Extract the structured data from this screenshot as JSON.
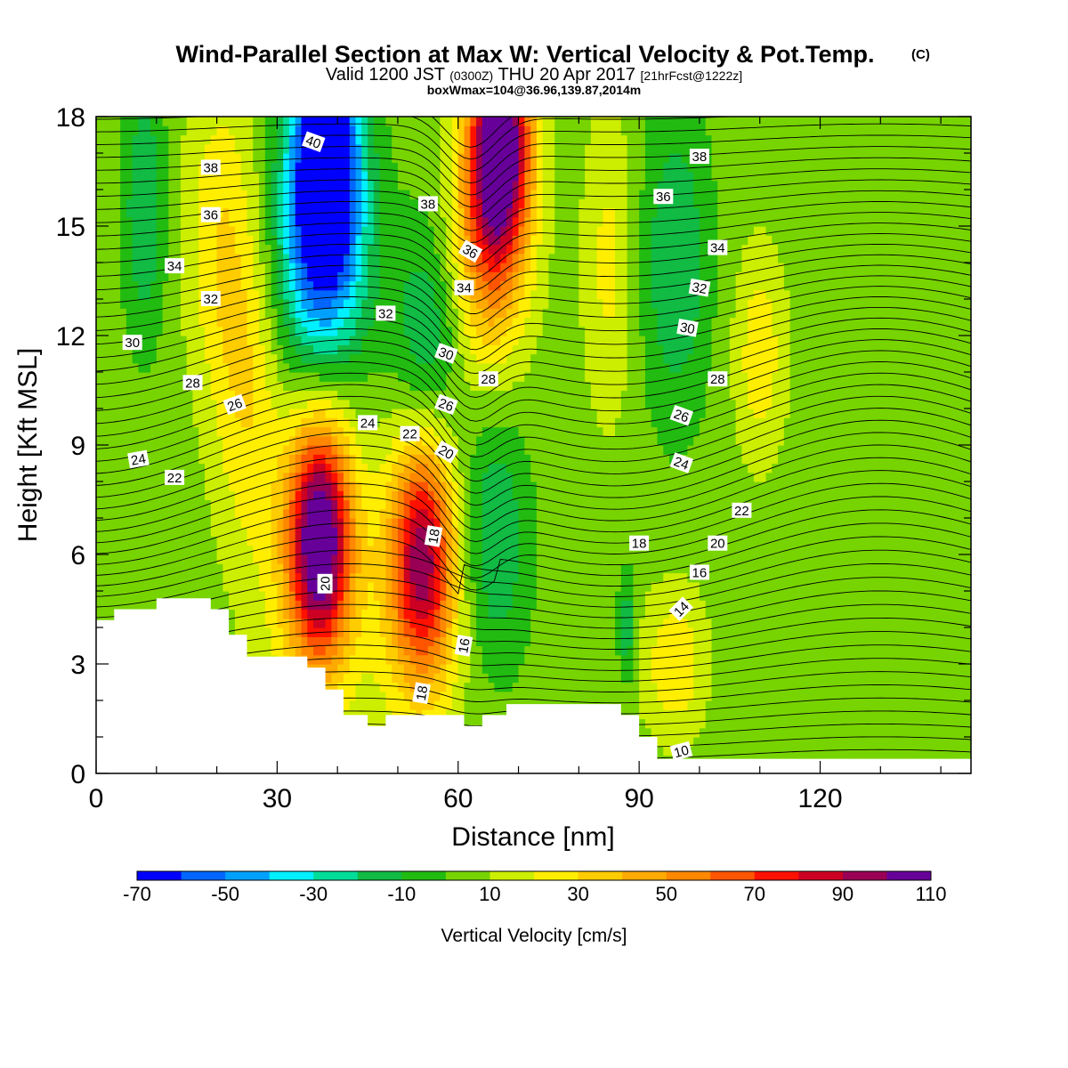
{
  "title": {
    "line1": "Wind-Parallel Section at Max W: Vertical Velocity & Pot.Temp.",
    "line1_suffix": "(C)",
    "line2_a": "Valid 1200 JST",
    "line2_b": "(0300Z)",
    "line2_c": "THU 20 Apr 2017",
    "line2_d": "[21hrFcst@1222z]",
    "line3": "boxWmax=104@36.96,139.87,2014m"
  },
  "chart_data": {
    "type": "heatmap",
    "xlabel": "Distance [nm]",
    "ylabel": "Height [Kft MSL]",
    "xlim": [
      0,
      145
    ],
    "ylim": [
      0,
      18
    ],
    "xticks": [
      0,
      30,
      60,
      90,
      120
    ],
    "yticks": [
      0,
      3,
      6,
      9,
      12,
      15,
      18
    ],
    "colorbar": {
      "title": "Vertical Velocity [cm/s]",
      "bounds": [
        -70,
        -60,
        -50,
        -40,
        -30,
        -20,
        -10,
        0,
        10,
        20,
        30,
        40,
        50,
        60,
        70,
        80,
        90,
        100,
        110
      ],
      "tick_labels": [
        -70,
        -50,
        -30,
        -10,
        10,
        30,
        50,
        70,
        90,
        110
      ],
      "colors": [
        "#0000ff",
        "#0066ff",
        "#00a0ff",
        "#00f0ff",
        "#00dd99",
        "#11bb44",
        "#22bb11",
        "#77d400",
        "#ccee00",
        "#ffee00",
        "#ffcc00",
        "#ffaa00",
        "#ff8800",
        "#ff5500",
        "#ff1100",
        "#cc0022",
        "#990055",
        "#660099"
      ]
    },
    "velocity_features": [
      {
        "x": 38,
        "y": 17,
        "sx": 4,
        "sy": 2.6,
        "value": -90
      },
      {
        "x": 37,
        "y": 14,
        "sx": 6,
        "sy": 2.5,
        "value": -40
      },
      {
        "x": 55,
        "y": 12,
        "sx": 4,
        "sy": 2.2,
        "value": -25
      },
      {
        "x": 67,
        "y": 17.5,
        "sx": 3.5,
        "sy": 2.2,
        "value": 110
      },
      {
        "x": 65,
        "y": 14.5,
        "sx": 4.5,
        "sy": 2.5,
        "value": 45
      },
      {
        "x": 37,
        "y": 6.5,
        "sx": 3.5,
        "sy": 2.2,
        "value": 90
      },
      {
        "x": 37,
        "y": 5.5,
        "sx": 6,
        "sy": 3,
        "value": 30
      },
      {
        "x": 54,
        "y": 6,
        "sx": 3.5,
        "sy": 2.2,
        "value": 65
      },
      {
        "x": 54,
        "y": 5,
        "sx": 5,
        "sy": 3,
        "value": 30
      },
      {
        "x": 25,
        "y": 11,
        "sx": 4,
        "sy": 3.5,
        "value": 25
      },
      {
        "x": 20,
        "y": 15,
        "sx": 4,
        "sy": 3,
        "value": 20
      },
      {
        "x": 66,
        "y": 6.5,
        "sx": 4,
        "sy": 2.5,
        "value": -25
      },
      {
        "x": 96,
        "y": 14,
        "sx": 4,
        "sy": 3,
        "value": -25
      },
      {
        "x": 85,
        "y": 14,
        "sx": 3,
        "sy": 3,
        "value": 18
      },
      {
        "x": 110,
        "y": 11.5,
        "sx": 3,
        "sy": 2,
        "value": 22
      },
      {
        "x": 8,
        "y": 15.5,
        "sx": 2.5,
        "sy": 2.5,
        "value": -25
      },
      {
        "x": 96,
        "y": 3,
        "sx": 4,
        "sy": 1.5,
        "value": 25
      },
      {
        "x": 88,
        "y": 4,
        "sx": 1,
        "sy": 1,
        "value": -25
      },
      {
        "x": 125,
        "y": 2,
        "sx": 20,
        "sy": 2.5,
        "value": -5
      }
    ],
    "terrain_kft": [
      [
        0,
        4.2
      ],
      [
        3,
        4.2
      ],
      [
        3,
        4.5
      ],
      [
        10,
        4.5
      ],
      [
        10,
        4.8
      ],
      [
        19,
        4.8
      ],
      [
        19,
        4.5
      ],
      [
        22,
        4.5
      ],
      [
        22,
        3.8
      ],
      [
        25,
        3.8
      ],
      [
        25,
        3.2
      ],
      [
        35,
        3.2
      ],
      [
        35,
        2.9
      ],
      [
        38,
        2.9
      ],
      [
        38,
        2.3
      ],
      [
        41,
        2.3
      ],
      [
        41,
        1.6
      ],
      [
        45,
        1.6
      ],
      [
        45,
        1.3
      ],
      [
        48,
        1.3
      ],
      [
        48,
        1.6
      ],
      [
        61,
        1.6
      ],
      [
        61,
        1.3
      ],
      [
        64,
        1.3
      ],
      [
        64,
        1.6
      ],
      [
        68,
        1.6
      ],
      [
        68,
        1.9
      ],
      [
        87,
        1.9
      ],
      [
        87,
        1.6
      ],
      [
        90,
        1.6
      ],
      [
        90,
        1.0
      ],
      [
        93,
        1.0
      ],
      [
        93,
        0.4
      ],
      [
        145,
        0.4
      ]
    ],
    "theta_label_values": [
      "40",
      "38",
      "36",
      "34",
      "32",
      "30",
      "28",
      "26",
      "24",
      "22",
      "20",
      "18",
      "16",
      "14",
      "10"
    ],
    "theta_labels": [
      {
        "text": "40",
        "x": 36,
        "y": 17.3,
        "angle": 20
      },
      {
        "text": "38",
        "x": 19,
        "y": 16.6,
        "angle": 0
      },
      {
        "text": "36",
        "x": 19,
        "y": 15.3,
        "angle": 0
      },
      {
        "text": "34",
        "x": 13,
        "y": 13.9,
        "angle": 0
      },
      {
        "text": "32",
        "x": 19,
        "y": 13.0,
        "angle": 0
      },
      {
        "text": "30",
        "x": 6,
        "y": 11.8,
        "angle": 0
      },
      {
        "text": "28",
        "x": 16,
        "y": 10.7,
        "angle": 0
      },
      {
        "text": "26",
        "x": 23,
        "y": 10.1,
        "angle": -20
      },
      {
        "text": "24",
        "x": 7,
        "y": 8.6,
        "angle": -10
      },
      {
        "text": "22",
        "x": 13,
        "y": 8.1,
        "angle": 0
      },
      {
        "text": "24",
        "x": 45,
        "y": 9.6,
        "angle": 0
      },
      {
        "text": "22",
        "x": 52,
        "y": 9.3,
        "angle": 0
      },
      {
        "text": "32",
        "x": 48,
        "y": 12.6,
        "angle": 0
      },
      {
        "text": "38",
        "x": 55,
        "y": 15.6,
        "angle": 0
      },
      {
        "text": "36",
        "x": 62,
        "y": 14.3,
        "angle": 30
      },
      {
        "text": "34",
        "x": 61,
        "y": 13.3,
        "angle": 0
      },
      {
        "text": "30",
        "x": 58,
        "y": 11.5,
        "angle": 20
      },
      {
        "text": "28",
        "x": 65,
        "y": 10.8,
        "angle": 0
      },
      {
        "text": "26",
        "x": 58,
        "y": 10.1,
        "angle": 20
      },
      {
        "text": "20",
        "x": 58,
        "y": 8.8,
        "angle": 30
      },
      {
        "text": "18",
        "x": 56,
        "y": 6.5,
        "angle": -80
      },
      {
        "text": "20",
        "x": 38,
        "y": 5.2,
        "angle": -90
      },
      {
        "text": "16",
        "x": 61,
        "y": 3.5,
        "angle": -80
      },
      {
        "text": "18",
        "x": 54,
        "y": 2.2,
        "angle": -80
      },
      {
        "text": "38",
        "x": 100,
        "y": 16.9,
        "angle": 0
      },
      {
        "text": "36",
        "x": 94,
        "y": 15.8,
        "angle": 0
      },
      {
        "text": "34",
        "x": 103,
        "y": 14.4,
        "angle": 0
      },
      {
        "text": "32",
        "x": 100,
        "y": 13.3,
        "angle": 10
      },
      {
        "text": "30",
        "x": 98,
        "y": 12.2,
        "angle": 10
      },
      {
        "text": "28",
        "x": 103,
        "y": 10.8,
        "angle": 0
      },
      {
        "text": "26",
        "x": 97,
        "y": 9.8,
        "angle": 20
      },
      {
        "text": "24",
        "x": 97,
        "y": 8.5,
        "angle": 20
      },
      {
        "text": "22",
        "x": 107,
        "y": 7.2,
        "angle": 0
      },
      {
        "text": "20",
        "x": 103,
        "y": 6.3,
        "angle": 0
      },
      {
        "text": "18",
        "x": 90,
        "y": 6.3,
        "angle": 0
      },
      {
        "text": "16",
        "x": 100,
        "y": 5.5,
        "angle": 0
      },
      {
        "text": "14",
        "x": 97,
        "y": 4.5,
        "angle": -45
      },
      {
        "text": "10",
        "x": 97,
        "y": 0.6,
        "angle": -15
      }
    ]
  }
}
